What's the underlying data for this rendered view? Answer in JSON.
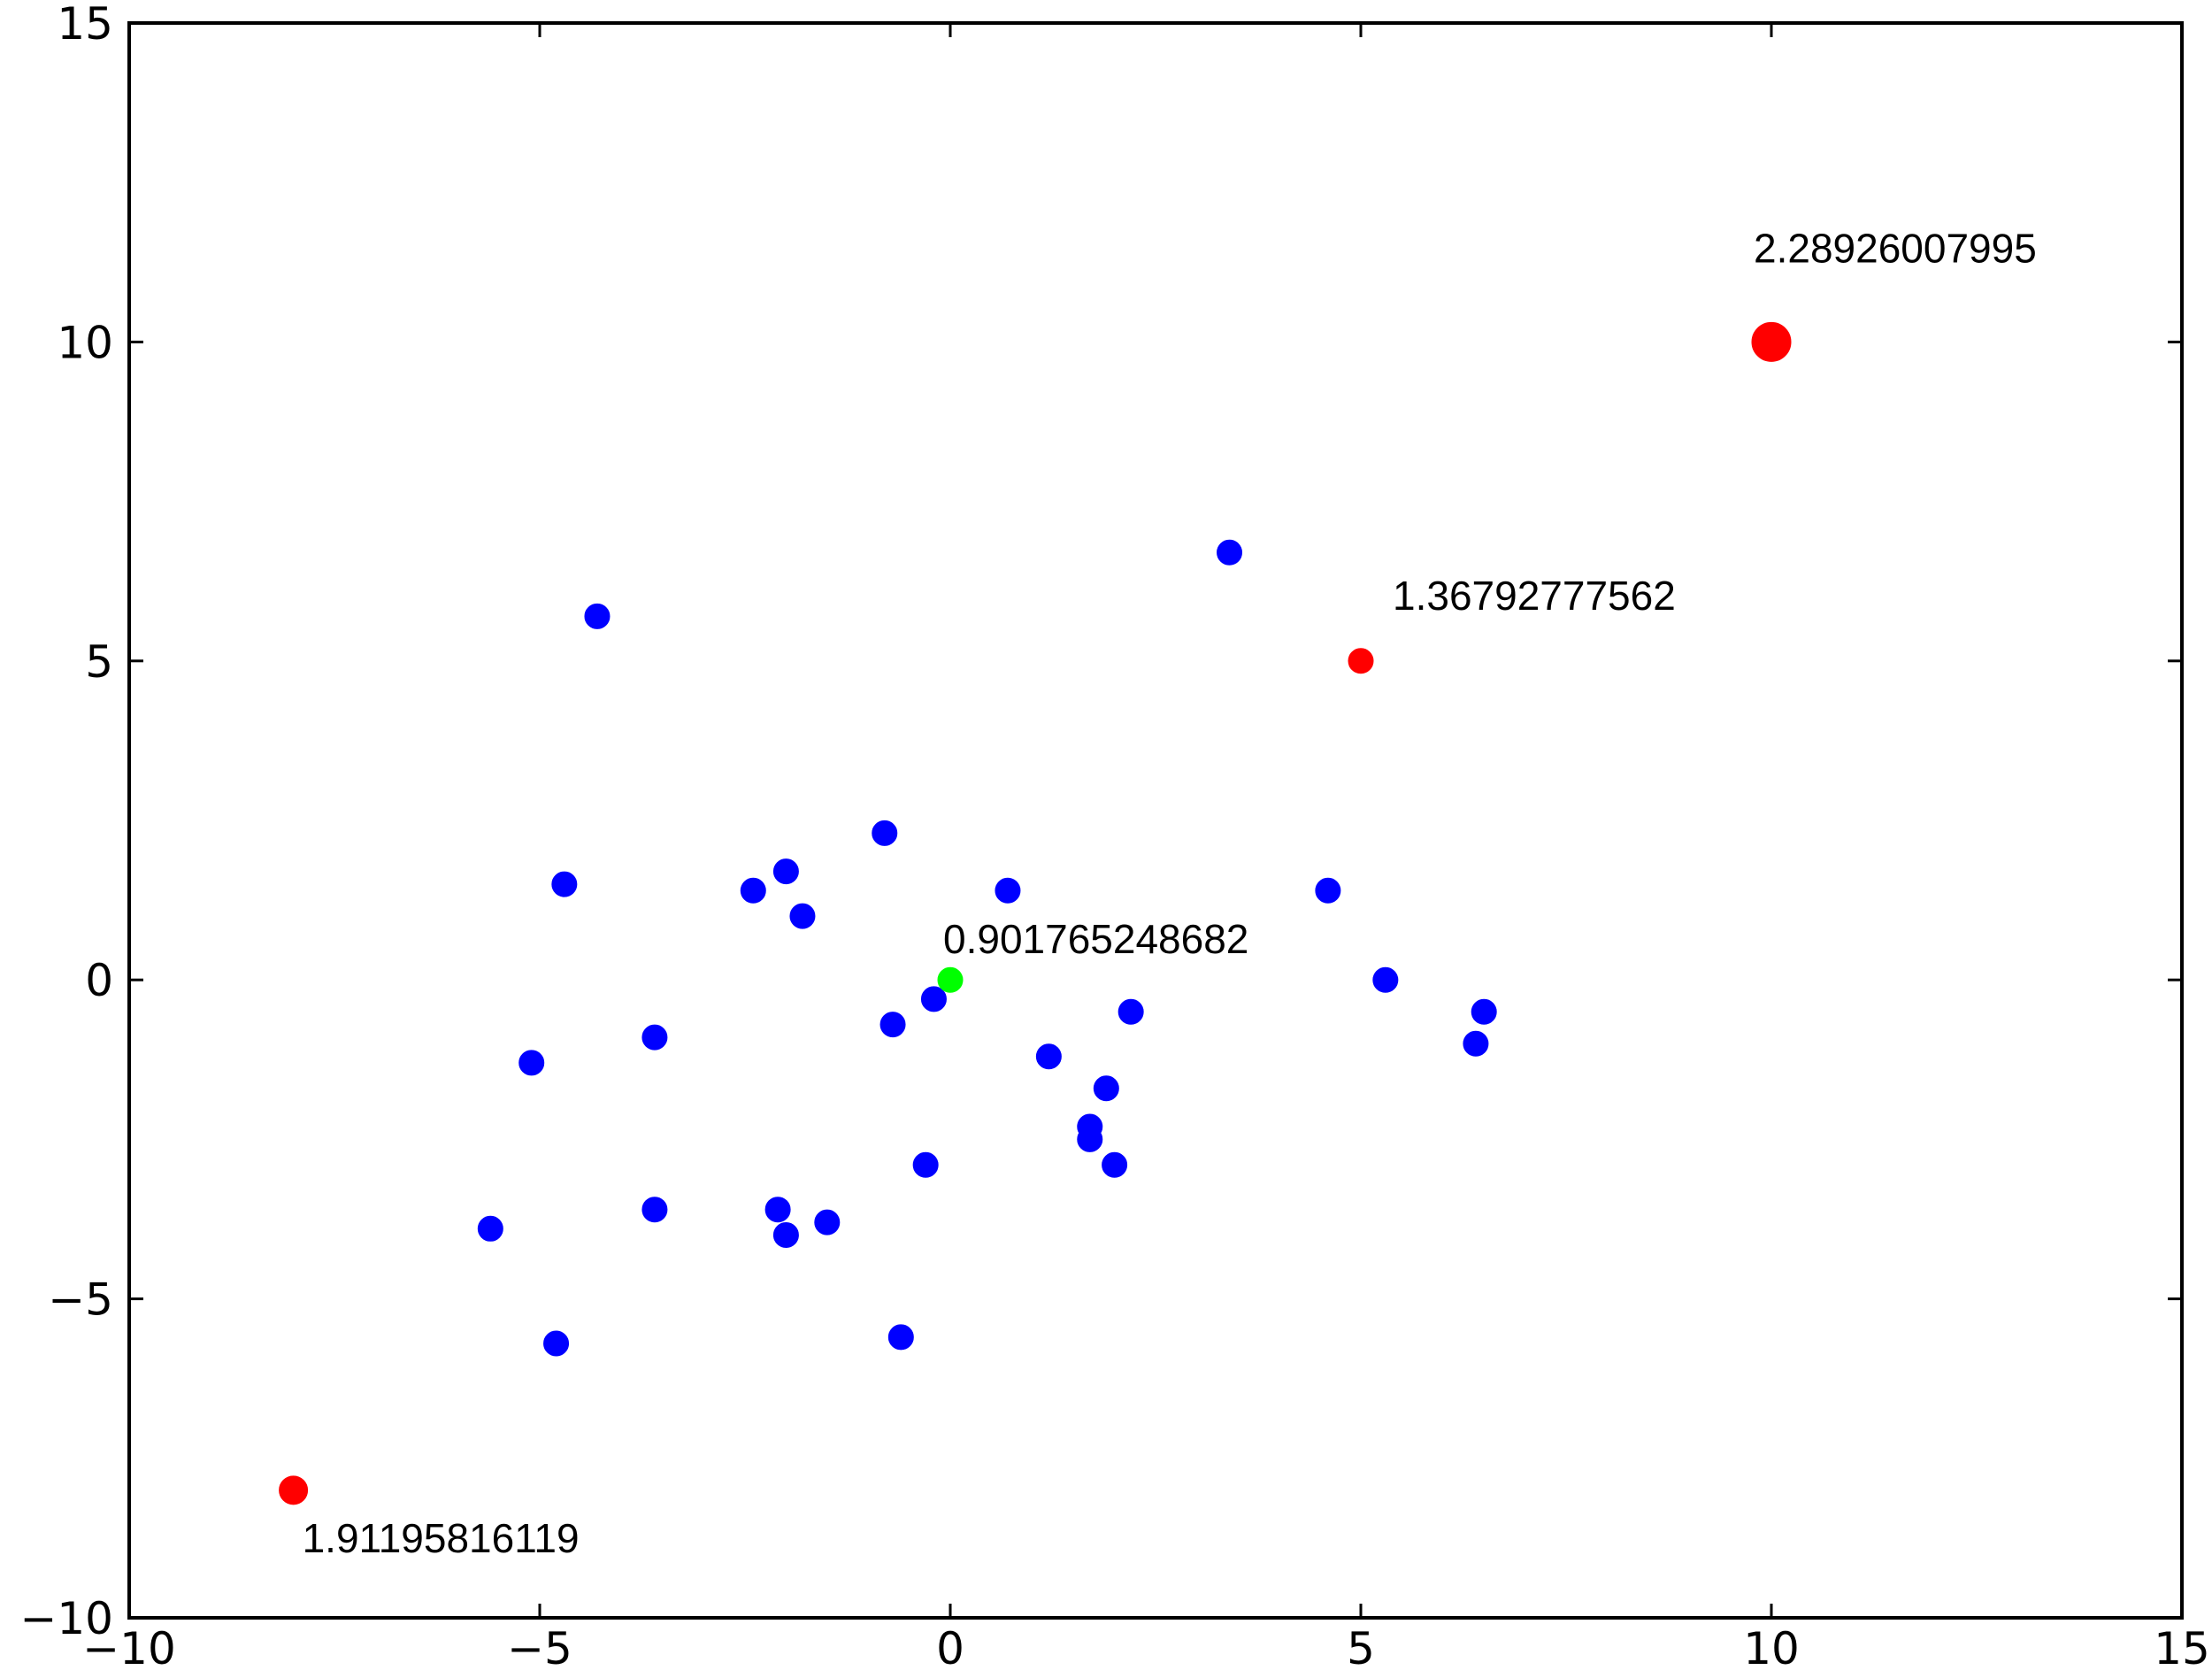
{
  "chart_data": {
    "type": "scatter",
    "title": "",
    "xlabel": "",
    "ylabel": "",
    "xlim": [
      -10,
      15
    ],
    "ylim": [
      -10,
      15
    ],
    "x_ticks": [
      -10,
      -5,
      0,
      5,
      10,
      15
    ],
    "y_ticks": [
      -10,
      -5,
      0,
      5,
      10,
      15
    ],
    "x_tick_labels": [
      "−10",
      "−5",
      "0",
      "5",
      "10",
      "15"
    ],
    "y_tick_labels": [
      "−10",
      "−5",
      "0",
      "5",
      "10",
      "15"
    ],
    "grid": false,
    "legend": "none",
    "series": [
      {
        "color": "#0000ff",
        "points": [
          {
            "x": -5.6,
            "y": -3.9
          },
          {
            "x": -5.1,
            "y": -1.3
          },
          {
            "x": -4.8,
            "y": -5.7
          },
          {
            "x": -4.7,
            "y": 1.5
          },
          {
            "x": -4.3,
            "y": 5.7
          },
          {
            "x": -3.6,
            "y": -0.9
          },
          {
            "x": -3.6,
            "y": -3.6
          },
          {
            "x": -2.4,
            "y": 1.4
          },
          {
            "x": -2.1,
            "y": -3.6
          },
          {
            "x": -2.0,
            "y": 1.7
          },
          {
            "x": -2.0,
            "y": -4.0
          },
          {
            "x": -1.8,
            "y": 1.0
          },
          {
            "x": -1.5,
            "y": -3.8
          },
          {
            "x": -0.8,
            "y": 2.3
          },
          {
            "x": -0.7,
            "y": -0.7
          },
          {
            "x": -0.6,
            "y": -5.6
          },
          {
            "x": -0.3,
            "y": -2.9
          },
          {
            "x": -0.2,
            "y": -0.3
          },
          {
            "x": 0.7,
            "y": 1.4
          },
          {
            "x": 1.2,
            "y": -1.2
          },
          {
            "x": 1.7,
            "y": -2.3
          },
          {
            "x": 1.7,
            "y": -2.5
          },
          {
            "x": 1.9,
            "y": -1.7
          },
          {
            "x": 2.0,
            "y": -2.9
          },
          {
            "x": 2.2,
            "y": -0.5
          },
          {
            "x": 3.4,
            "y": 6.7
          },
          {
            "x": 4.6,
            "y": 1.4
          },
          {
            "x": 5.3,
            "y": 0.0
          },
          {
            "x": 6.4,
            "y": -1.0
          },
          {
            "x": 6.5,
            "y": -0.5
          }
        ]
      },
      {
        "color": "#00ff00",
        "points": [
          {
            "x": 0.0,
            "y": 0.0,
            "label": "0.901765248682"
          }
        ]
      },
      {
        "color": "#ff0000",
        "points": [
          {
            "x": -8.0,
            "y": -8.0,
            "label": "1.91195816119"
          },
          {
            "x": 5.0,
            "y": 5.0,
            "label": "1.36792777562"
          },
          {
            "x": 10.0,
            "y": 10.0,
            "label": "2.28926007995"
          }
        ]
      }
    ]
  }
}
